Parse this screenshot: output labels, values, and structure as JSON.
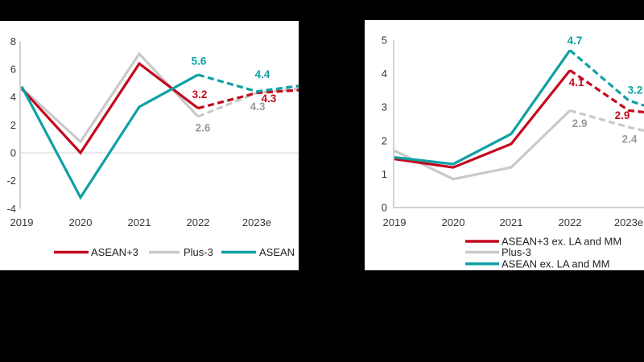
{
  "figure": {
    "background_color": "#000000",
    "panel_color": "#FFFFFF",
    "description": "Two line charts on white panels over black background; dashed segments denote 2023e forecasts"
  },
  "colors": {
    "red": "#C20A1E",
    "teal": "#0FA0A5",
    "gray_line": "#C9C9C9",
    "gray_text": "#9A9A9A",
    "axis_line": "#A6A6A6",
    "grid_line": "#D4D4D4",
    "tick_text": "#363636",
    "legend_text": "#1F1F1F"
  },
  "chart_data": [
    {
      "id": "left",
      "type": "line",
      "title": "",
      "categories": [
        "2019",
        "2020",
        "2021",
        "2022",
        "2023e"
      ],
      "ylim": [
        -4,
        8
      ],
      "yticks": [
        8,
        6,
        4,
        2,
        0,
        -2,
        -4
      ],
      "grid": "zero-line-only",
      "legend_position": "bottom-row",
      "forecast_from_index": 3,
      "forecast_style": "dashed",
      "series": [
        {
          "name": "ASEAN+3",
          "color_key": "red",
          "values": [
            4.6,
            0.0,
            6.4,
            3.2,
            4.3
          ],
          "edge_value": 4.5,
          "labels": [
            {
              "i": 3,
              "text": "3.2"
            },
            {
              "i": 4,
              "text": "4.3"
            }
          ]
        },
        {
          "name": "Plus-3",
          "color_key": "gray_line",
          "label_color_key": "gray_text",
          "values": [
            4.65,
            0.8,
            7.1,
            2.6,
            4.3
          ],
          "edge_value": 4.6,
          "labels": [
            {
              "i": 3,
              "text": "2.6"
            },
            {
              "i": 4,
              "text": "4.3"
            }
          ]
        },
        {
          "name": "ASEAN",
          "color_key": "teal",
          "values": [
            4.75,
            -3.2,
            3.3,
            5.6,
            4.4
          ],
          "edge_value": 4.8,
          "labels": [
            {
              "i": 3,
              "text": "5.6"
            },
            {
              "i": 4,
              "text": "4.4"
            }
          ]
        }
      ]
    },
    {
      "id": "right",
      "type": "line",
      "title": "",
      "categories": [
        "2019",
        "2020",
        "2021",
        "2022",
        "2023e"
      ],
      "ylim": [
        0,
        5
      ],
      "yticks": [
        5,
        4,
        3,
        2,
        1,
        0
      ],
      "grid": "bottom-axis-only",
      "legend_position": "bottom-stack",
      "forecast_from_index": 3,
      "forecast_style": "dashed",
      "series": [
        {
          "name": "ASEAN+3 ex. LA and MM",
          "color_key": "red",
          "values": [
            1.45,
            1.2,
            1.9,
            4.1,
            2.9
          ],
          "edge_value": 2.85,
          "labels": [
            {
              "i": 3,
              "text": "4.1"
            },
            {
              "i": 4,
              "text": "2.9"
            }
          ]
        },
        {
          "name": "Plus-3",
          "color_key": "gray_line",
          "label_color_key": "gray_text",
          "values": [
            1.7,
            0.85,
            1.2,
            2.9,
            2.4
          ],
          "edge_value": 2.3,
          "labels": [
            {
              "i": 3,
              "text": "2.9"
            },
            {
              "i": 4,
              "text": "2.4"
            }
          ]
        },
        {
          "name": "ASEAN ex. LA and MM",
          "color_key": "teal",
          "values": [
            1.5,
            1.3,
            2.2,
            4.7,
            3.2
          ],
          "edge_value": 3.05,
          "labels": [
            {
              "i": 3,
              "text": "4.7"
            },
            {
              "i": 4,
              "text": "3.2"
            }
          ]
        }
      ]
    }
  ]
}
